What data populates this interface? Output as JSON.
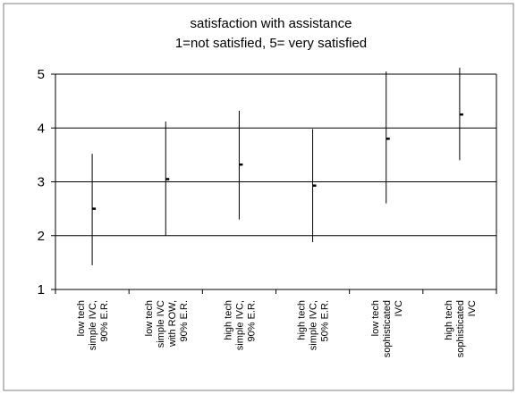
{
  "chart_data": {
    "type": "error_bar",
    "title": [
      "satisfaction with assistance",
      "1=not satisfied, 5= very satisfied"
    ],
    "xlabel": "",
    "ylabel": "",
    "ylim": [
      1,
      5
    ],
    "yticks": [
      "1",
      "2",
      "3",
      "4",
      "5"
    ],
    "grid": "horizontal",
    "categories": [
      [
        "low tech",
        "simple IVC,",
        "90% E.R."
      ],
      [
        "low tech",
        "simple IVC",
        "with ROW,",
        "90% E.R."
      ],
      [
        "high tech",
        "simple IVC,",
        "90% E.R."
      ],
      [
        "high tech",
        "simple IVC,",
        "50% E.R."
      ],
      [
        "low tech",
        "sophisticated",
        "IVC"
      ],
      [
        "high tech",
        "sophisticated",
        "IVC"
      ]
    ],
    "series": [
      {
        "mean": [
          2.5,
          3.05,
          3.32,
          2.93,
          3.8,
          4.25
        ],
        "low": [
          1.45,
          2.0,
          2.3,
          1.88,
          2.6,
          3.4
        ],
        "high": [
          3.52,
          4.12,
          4.32,
          3.98,
          5.05,
          5.12
        ]
      }
    ]
  }
}
